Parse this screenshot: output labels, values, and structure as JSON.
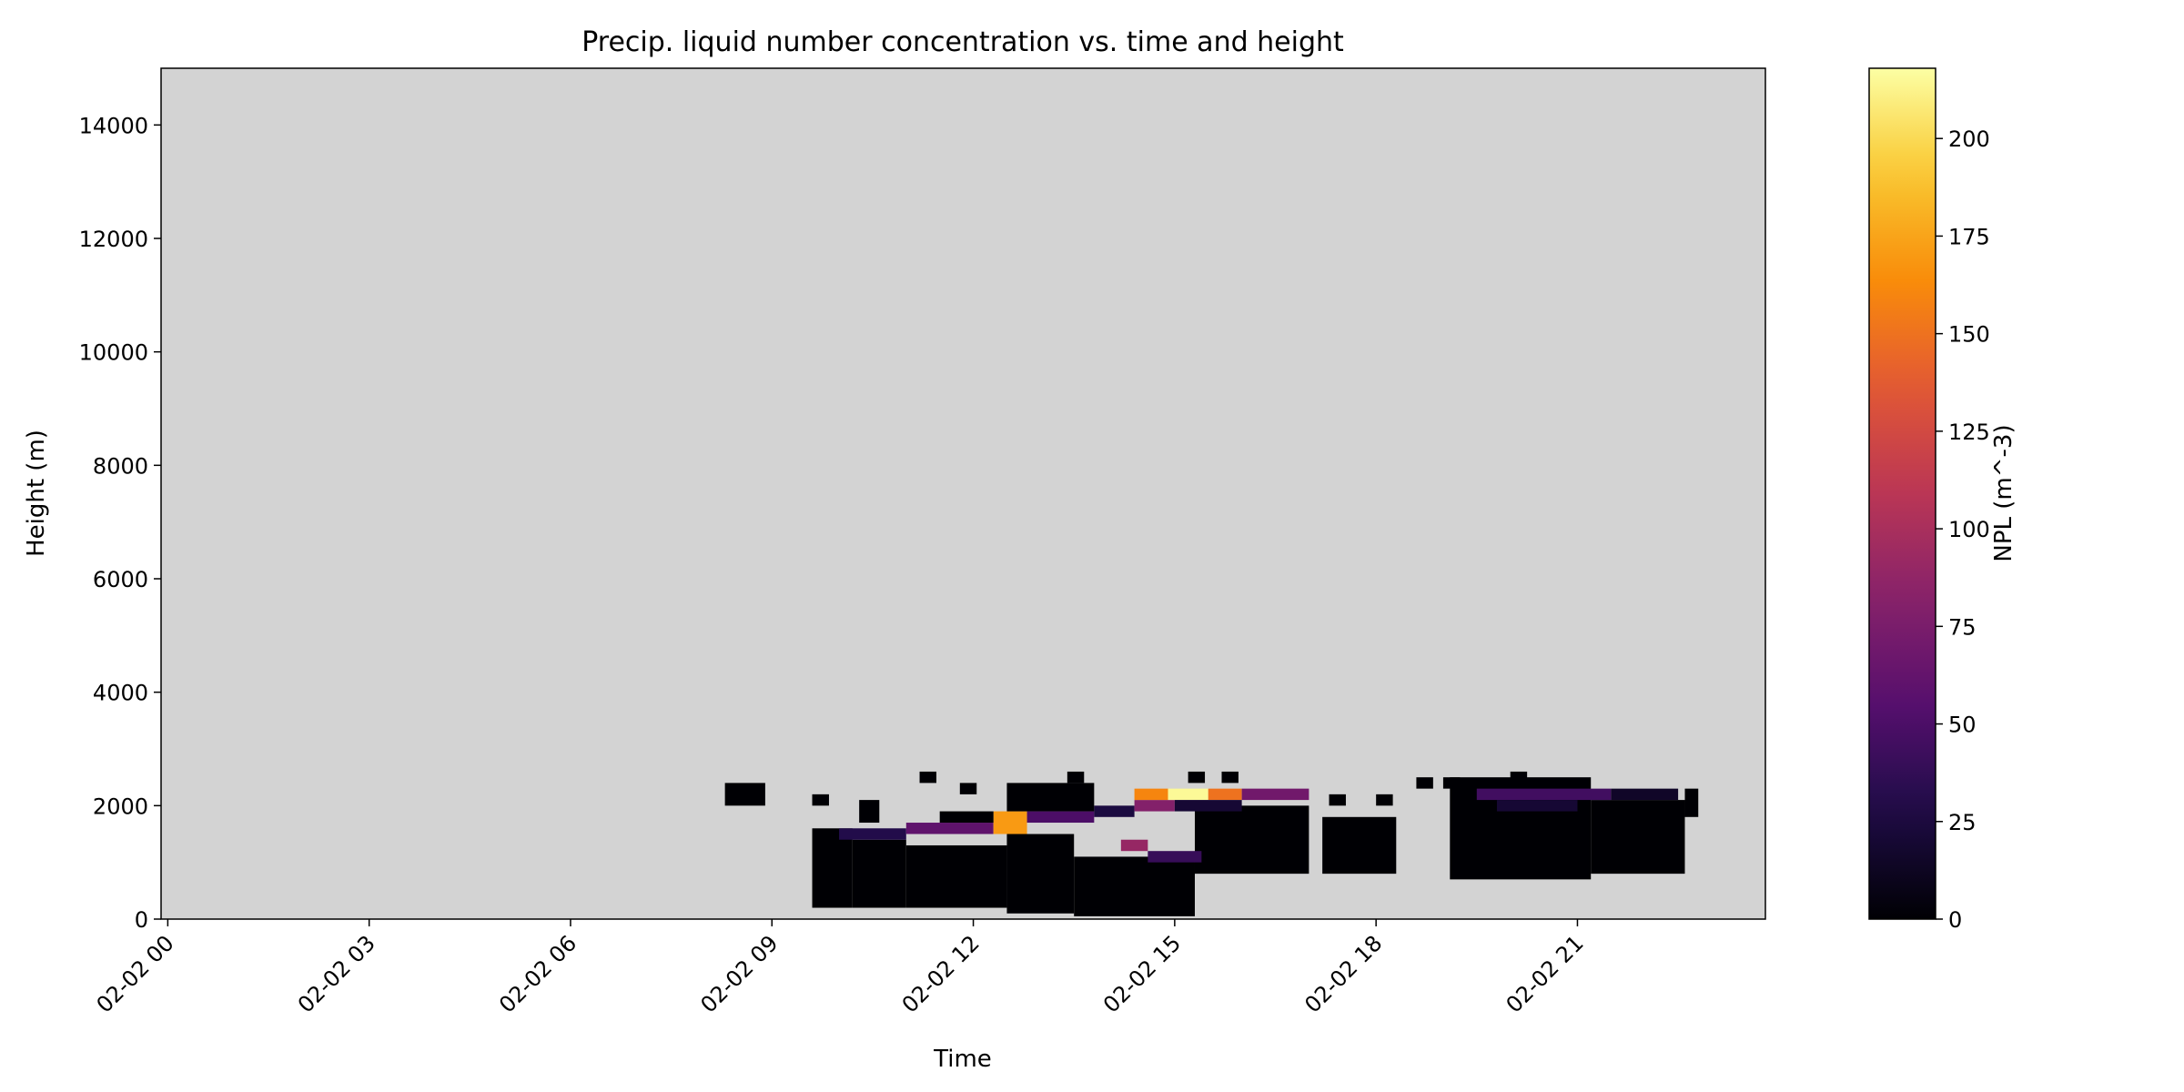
{
  "chart_data": {
    "type": "heatmap",
    "title": "Precip. liquid number concentration vs. time and height",
    "xlabel": "Time",
    "ylabel": "Height (m)",
    "x_range_hours": [
      -0.1,
      23.8
    ],
    "ylim": [
      0,
      15000
    ],
    "x_ticks": [
      {
        "label": "02-02 00",
        "hour": 0
      },
      {
        "label": "02-02 03",
        "hour": 3
      },
      {
        "label": "02-02 06",
        "hour": 6
      },
      {
        "label": "02-02 09",
        "hour": 9
      },
      {
        "label": "02-02 12",
        "hour": 12
      },
      {
        "label": "02-02 15",
        "hour": 15
      },
      {
        "label": "02-02 18",
        "hour": 18
      },
      {
        "label": "02-02 21",
        "hour": 21
      }
    ],
    "y_ticks": [
      0,
      2000,
      4000,
      6000,
      8000,
      10000,
      12000,
      14000
    ],
    "background_color": "#d3d3d3",
    "colormap": "inferno",
    "colorbar": {
      "label": "NPL (m^-3)",
      "min": 0,
      "max": 218,
      "ticks": [
        0,
        25,
        50,
        75,
        100,
        125,
        150,
        175,
        200
      ]
    },
    "grid": false,
    "cell_size": {
      "hours": 0.25,
      "meters": 200
    },
    "regions": [
      {
        "t0": 8.3,
        "t1": 8.9,
        "h0": 2000,
        "h1": 2400,
        "value": 0
      },
      {
        "t0": 9.6,
        "t1": 10.2,
        "h0": 200,
        "h1": 1600,
        "value": 0
      },
      {
        "t0": 10.2,
        "t1": 11.0,
        "h0": 200,
        "h1": 1400,
        "value": 0
      },
      {
        "t0": 11.0,
        "t1": 12.5,
        "h0": 200,
        "h1": 1300,
        "value": 0
      },
      {
        "t0": 12.5,
        "t1": 13.5,
        "h0": 100,
        "h1": 1500,
        "value": 0
      },
      {
        "t0": 13.5,
        "t1": 15.3,
        "h0": 50,
        "h1": 1100,
        "value": 0
      },
      {
        "t0": 15.3,
        "t1": 17.0,
        "h0": 800,
        "h1": 2000,
        "value": 0
      },
      {
        "t0": 17.2,
        "t1": 18.3,
        "h0": 800,
        "h1": 1800,
        "value": 0
      },
      {
        "t0": 19.1,
        "t1": 21.2,
        "h0": 700,
        "h1": 2500,
        "value": 0
      },
      {
        "t0": 21.2,
        "t1": 22.6,
        "h0": 800,
        "h1": 2100,
        "value": 0
      },
      {
        "t0": 22.6,
        "t1": 22.8,
        "h0": 1800,
        "h1": 2300,
        "value": 0
      },
      {
        "t0": 10.0,
        "t1": 11.0,
        "h0": 1400,
        "h1": 1600,
        "value": 30
      },
      {
        "t0": 11.0,
        "t1": 12.3,
        "h0": 1500,
        "h1": 1700,
        "value": 60
      },
      {
        "t0": 12.3,
        "t1": 12.8,
        "h0": 1500,
        "h1": 1900,
        "value": 170
      },
      {
        "t0": 12.8,
        "t1": 13.8,
        "h0": 1700,
        "h1": 1900,
        "value": 50
      },
      {
        "t0": 13.8,
        "t1": 14.4,
        "h0": 1800,
        "h1": 2000,
        "value": 25
      },
      {
        "t0": 14.2,
        "t1": 14.6,
        "h0": 1200,
        "h1": 1400,
        "value": 90
      },
      {
        "t0": 14.6,
        "t1": 15.4,
        "h0": 1000,
        "h1": 1200,
        "value": 40
      },
      {
        "t0": 14.4,
        "t1": 15.0,
        "h0": 1900,
        "h1": 2100,
        "value": 80
      },
      {
        "t0": 14.4,
        "t1": 14.9,
        "h0": 2100,
        "h1": 2300,
        "value": 160
      },
      {
        "t0": 14.9,
        "t1": 15.5,
        "h0": 2100,
        "h1": 2300,
        "value": 215
      },
      {
        "t0": 15.5,
        "t1": 16.0,
        "h0": 2100,
        "h1": 2300,
        "value": 150
      },
      {
        "t0": 16.0,
        "t1": 17.0,
        "h0": 2100,
        "h1": 2300,
        "value": 70
      },
      {
        "t0": 15.0,
        "t1": 16.0,
        "h0": 1900,
        "h1": 2100,
        "value": 20
      },
      {
        "t0": 19.5,
        "t1": 21.5,
        "h0": 2100,
        "h1": 2300,
        "value": 45
      },
      {
        "t0": 21.5,
        "t1": 22.5,
        "h0": 2100,
        "h1": 2300,
        "value": 15
      },
      {
        "t0": 19.8,
        "t1": 21.0,
        "h0": 1900,
        "h1": 2100,
        "value": 20
      },
      {
        "t0": 10.3,
        "t1": 10.6,
        "h0": 1700,
        "h1": 2100,
        "value": 0
      },
      {
        "t0": 11.5,
        "t1": 12.3,
        "h0": 1700,
        "h1": 1900,
        "value": 0
      },
      {
        "t0": 12.5,
        "t1": 13.8,
        "h0": 1900,
        "h1": 2400,
        "value": 0
      }
    ],
    "specks": [
      {
        "t": 9.6,
        "h": 2000,
        "value": 0
      },
      {
        "t": 11.2,
        "h": 2400,
        "value": 0
      },
      {
        "t": 11.8,
        "h": 2200,
        "value": 0
      },
      {
        "t": 13.4,
        "h": 2400,
        "value": 0
      },
      {
        "t": 15.2,
        "h": 2400,
        "value": 0
      },
      {
        "t": 15.7,
        "h": 2400,
        "value": 0
      },
      {
        "t": 17.3,
        "h": 2000,
        "value": 0
      },
      {
        "t": 18.0,
        "h": 2000,
        "value": 0
      },
      {
        "t": 18.6,
        "h": 2300,
        "value": 0
      },
      {
        "t": 19.0,
        "h": 2300,
        "value": 0
      },
      {
        "t": 20.0,
        "h": 2400,
        "value": 0
      }
    ]
  }
}
